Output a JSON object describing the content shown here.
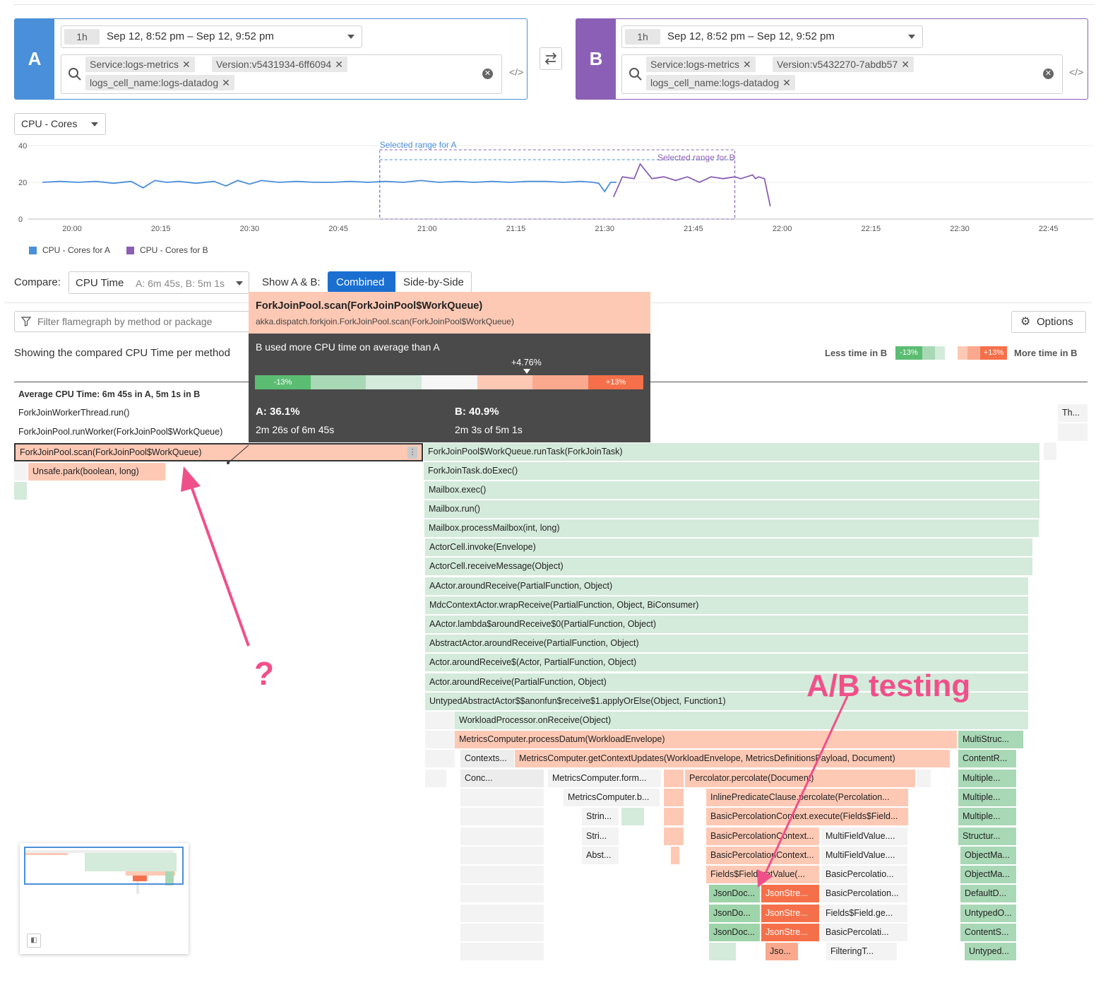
{
  "colors": {
    "panel_a": "#4a8fd9",
    "panel_b": "#8b5fb5",
    "combined_active": "#1a6fd1",
    "less_time_green": "#5bbd72",
    "more_time_red": "#f5704a",
    "annotation_pink": "#f0508a"
  },
  "panel_a": {
    "badge": "A",
    "time_chip": "1h",
    "time_range": "Sep 12, 8:52 pm – Sep 12, 9:52 pm",
    "tags": [
      "Service:logs-metrics",
      "Version:v5431934-6ff6094",
      "logs_cell_name:logs-datadog"
    ]
  },
  "swap_icon": "swap-arrows-icon",
  "panel_b": {
    "badge": "B",
    "time_chip": "1h",
    "time_range": "Sep 12, 8:52 pm – Sep 12, 9:52 pm",
    "tags": [
      "Service:logs-metrics",
      "Version:v5432270-7abdb57",
      "logs_cell_name:logs-datadog"
    ]
  },
  "metric_select": "CPU - Cores",
  "chart_data": {
    "type": "line",
    "x_ticks": [
      "20:00",
      "20:15",
      "20:30",
      "20:45",
      "21:00",
      "21:15",
      "21:30",
      "21:45",
      "22:00",
      "22:15",
      "22:30",
      "22:45"
    ],
    "y_ticks": [
      "0",
      "20",
      "40"
    ],
    "ylim": [
      0,
      40
    ],
    "series": [
      {
        "name": "CPU - Cores for A",
        "color": "#4a8fd9",
        "x": [
          "19:55",
          "19:58",
          "20:01",
          "20:04",
          "20:07",
          "20:10",
          "20:12",
          "20:14",
          "20:16",
          "20:18",
          "20:21",
          "20:24",
          "20:26",
          "20:28",
          "20:30",
          "20:32",
          "20:35",
          "20:38",
          "20:41",
          "20:44",
          "20:47",
          "20:50",
          "20:53",
          "20:56",
          "20:59",
          "21:02",
          "21:05",
          "21:08",
          "21:11",
          "21:14",
          "21:17",
          "21:20",
          "21:23",
          "21:26",
          "21:28",
          "21:29",
          "21:30",
          "21:31",
          "21:32"
        ],
        "values": [
          20,
          20.5,
          20,
          20.5,
          19.5,
          20.5,
          17,
          21,
          20,
          20.5,
          19.5,
          20.5,
          18,
          21,
          19,
          21,
          20,
          20.5,
          20,
          20,
          20.5,
          20,
          20.5,
          20,
          21,
          20,
          20.5,
          20,
          20.5,
          20,
          20.5,
          20.5,
          20,
          20.5,
          20,
          19.5,
          15,
          20,
          20
        ]
      },
      {
        "name": "CPU - Cores for B",
        "color": "#8b5fb5",
        "x": [
          "21:31.5",
          "21:33",
          "21:35",
          "21:36",
          "21:38",
          "21:40",
          "21:42",
          "21:44",
          "21:46",
          "21:48",
          "21:50",
          "21:52",
          "21:53",
          "21:54",
          "21:55",
          "21:55.5",
          "21:56",
          "21:57",
          "21:58"
        ],
        "values": [
          12,
          23,
          22,
          30,
          22,
          23,
          21,
          23,
          20,
          23,
          22,
          23,
          22,
          23,
          24,
          22,
          23,
          22,
          7
        ]
      }
    ],
    "annotations": [
      "Selected range for A",
      "Selected range for B"
    ]
  },
  "compare": {
    "label": "Compare:",
    "select_value": "CPU Time",
    "select_detail": "A: 6m 45s, B: 5m 1s",
    "show_label": "Show A & B:",
    "combined": "Combined",
    "side_by_side": "Side-by-Side"
  },
  "filter": {
    "placeholder": "Filter flamegraph by method or package"
  },
  "options_label": "Options",
  "summary_text": "Showing the compared CPU Time per method",
  "diff_legend": {
    "less": "Less time in B",
    "less_pct": "-13%",
    "more_pct": "+13%",
    "more": "More time in B"
  },
  "tooltip": {
    "method": "ForkJoinPool.scan(ForkJoinPool$WorkQueue)",
    "full_name": "akka.dispatch.forkjoin.ForkJoinPool.scan(ForkJoinPool$WorkQueue)",
    "message": "B used more CPU time on average than A",
    "delta": "+4.76%",
    "scale_low": "-13%",
    "scale_high": "+13%",
    "a_pct": "A: 36.1%",
    "a_detail": "2m 26s of 6m 45s",
    "b_pct": "B: 40.9%",
    "b_detail": "2m 3s of 5m 1s"
  },
  "flame": {
    "header": "Average CPU Time: 6m 45s in A, 5m 1s in B",
    "right_stub": "Th...",
    "left_frames": [
      "ForkJoinWorkerThread.run()",
      "ForkJoinPool.runWorker(ForkJoinPool$WorkQueue)",
      "ForkJoinPool.scan(ForkJoinPool$WorkQueue)",
      "Unsafe.park(boolean, long)"
    ],
    "main_frames": [
      "ForkJoinPool$WorkQueue.runTask(ForkJoinTask)",
      "ForkJoinTask.doExec()",
      "Mailbox.exec()",
      "Mailbox.run()",
      "Mailbox.processMailbox(int, long)",
      "ActorCell.invoke(Envelope)",
      "ActorCell.receiveMessage(Object)",
      "AActor.aroundReceive(PartialFunction, Object)",
      "MdcContextActor.wrapReceive(PartialFunction, Object, BiConsumer)",
      "AActor.lambda$aroundReceive$0(PartialFunction, Object)",
      "AbstractActor.aroundReceive(PartialFunction, Object)",
      "Actor.aroundReceive$(Actor, PartialFunction, Object)",
      "Actor.aroundReceive(PartialFunction, Object)",
      "UntypedAbstractActor$$anonfun$receive$1.applyOrElse(Object, Function1)",
      "WorkloadProcessor.onReceive(Object)",
      "MetricsComputer.processDatum(WorkloadEnvelope)"
    ],
    "deep": {
      "contexts": "Contexts...",
      "get_context_updates": "MetricsComputer.getContextUpdates(WorkloadEnvelope, MetricsDefinitionsPayload, Document)",
      "conc": "Conc...",
      "metrics_form": "MetricsComputer.form...",
      "percolate": "Percolator.percolate(Document)",
      "metrics_b": "MetricsComputer.b...",
      "inline_pred": "InlinePredicateClause.percolate(Percolation...",
      "strin": "Strin...",
      "bpc_execute": "BasicPercolationContext.execute(Fields$Field...",
      "stri": "Stri...",
      "bpc_ctx1": "BasicPercolationContext...",
      "mfv1": "MultiFieldValue....",
      "abst": "Abst...",
      "bpc_ctx2": "BasicPercolationContext...",
      "mfv2": "MultiFieldValue....",
      "fields_getvalue": "Fields$Field.getValue(...",
      "basic_perc1": "BasicPercolatio...",
      "jsondoc1": "JsonDoc...",
      "jsonstre1": "JsonStre...",
      "basic_perc2": "BasicPercolation...",
      "jsondo2": "JsonDo...",
      "jsonstre2": "JsonStre...",
      "fields_ge": "Fields$Field.ge...",
      "jsondoc3": "JsonDoc...",
      "jsonstre3": "JsonStre...",
      "basic_perc3": "BasicPercolati...",
      "jso": "Jso...",
      "filtering": "FilteringT..."
    },
    "right_column": [
      "MultiStruc...",
      "ContentR...",
      "Multiple...",
      "Multiple...",
      "Multiple...",
      "Structur...",
      "ObjectMa...",
      "ObjectMa...",
      "DefaultD...",
      "UntypedO...",
      "ContentS...",
      "Untyped..."
    ]
  },
  "annotations": {
    "question": "?",
    "ab_testing": "A/B testing"
  }
}
